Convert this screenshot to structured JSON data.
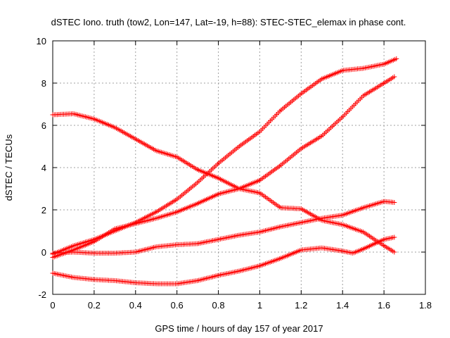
{
  "chart_data": {
    "type": "scatter",
    "title": "dSTEC Iono. truth (tow2, Lon=147, Lat=-19, h=88): STEC-STEC_elemax in phase cont.",
    "xlabel": "GPS time / hours of day 157 of year 2017",
    "ylabel": "dSTEC  / TECUs",
    "xlim": [
      0,
      1.8
    ],
    "ylim": [
      -2,
      10
    ],
    "x_ticks": [
      0,
      0.2,
      0.4,
      0.6,
      0.8,
      1,
      1.2,
      1.4,
      1.6,
      1.8
    ],
    "x_tick_labels": [
      "0",
      "0.2",
      "0.4",
      "0.6",
      "0.8",
      "1",
      "1.2",
      "1.4",
      "1.6",
      "1.8"
    ],
    "y_ticks": [
      -2,
      0,
      2,
      4,
      6,
      8,
      10
    ],
    "y_tick_labels": [
      "-2",
      "0",
      "2",
      "4",
      "6",
      "8",
      "10"
    ],
    "grid": true,
    "marker": "plus",
    "series_color": "#ff0000",
    "series": [
      {
        "x": [
          0,
          0.1,
          0.2,
          0.3,
          0.4,
          0.5,
          0.6,
          0.7,
          0.8,
          0.9,
          1.0,
          1.1,
          1.2,
          1.3,
          1.4,
          1.5,
          1.6,
          1.66
        ],
        "values": [
          -0.1,
          0.3,
          0.6,
          1.0,
          1.4,
          1.9,
          2.5,
          3.3,
          4.2,
          5.0,
          5.7,
          6.7,
          7.5,
          8.2,
          8.6,
          8.7,
          8.9,
          9.15
        ]
      },
      {
        "x": [
          0,
          0.1,
          0.2,
          0.3,
          0.4,
          0.5,
          0.6,
          0.7,
          0.8,
          0.9,
          1.0,
          1.1,
          1.2,
          1.3,
          1.4,
          1.5,
          1.6,
          1.65
        ],
        "values": [
          -0.25,
          0.1,
          0.5,
          1.1,
          1.35,
          1.6,
          1.9,
          2.3,
          2.75,
          3.0,
          3.4,
          4.1,
          4.9,
          5.5,
          6.4,
          7.4,
          8.0,
          8.3
        ]
      },
      {
        "x": [
          0,
          0.1,
          0.2,
          0.3,
          0.4,
          0.5,
          0.6,
          0.7,
          0.8,
          0.9,
          1.0,
          1.1,
          1.2,
          1.3,
          1.4,
          1.5,
          1.6,
          1.65
        ],
        "values": [
          6.5,
          6.55,
          6.3,
          5.9,
          5.35,
          4.8,
          4.5,
          3.9,
          3.5,
          3.0,
          2.8,
          2.1,
          2.05,
          1.5,
          1.3,
          0.95,
          0.3,
          0.0
        ]
      },
      {
        "x": [
          0,
          0.1,
          0.2,
          0.3,
          0.4,
          0.5,
          0.6,
          0.7,
          0.8,
          0.9,
          1.0,
          1.1,
          1.2,
          1.3,
          1.4,
          1.5,
          1.6,
          1.65
        ],
        "values": [
          -0.05,
          0.0,
          -0.05,
          -0.05,
          0.0,
          0.25,
          0.35,
          0.4,
          0.6,
          0.8,
          0.95,
          1.2,
          1.4,
          1.6,
          1.75,
          2.1,
          2.4,
          2.35
        ]
      },
      {
        "x": [
          0,
          0.1,
          0.2,
          0.3,
          0.4,
          0.5,
          0.6,
          0.7,
          0.8,
          0.9,
          1.0,
          1.1,
          1.2,
          1.3,
          1.4,
          1.45,
          1.5,
          1.6,
          1.65
        ],
        "values": [
          -1.0,
          -1.2,
          -1.3,
          -1.35,
          -1.45,
          -1.5,
          -1.5,
          -1.35,
          -1.1,
          -0.9,
          -0.65,
          -0.3,
          0.1,
          0.2,
          0.05,
          -0.05,
          0.15,
          0.6,
          0.7
        ]
      }
    ]
  }
}
